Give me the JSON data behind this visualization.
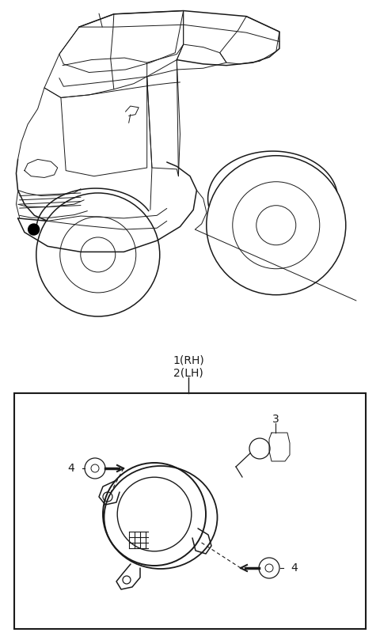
{
  "bg_color": "#ffffff",
  "line_color": "#1a1a1a",
  "fig_width": 4.8,
  "fig_height": 8.09,
  "dpi": 100,
  "label_1_rh": "1(RH)",
  "label_2_lh": "2(LH)",
  "label_3": "3",
  "label_4": "4"
}
